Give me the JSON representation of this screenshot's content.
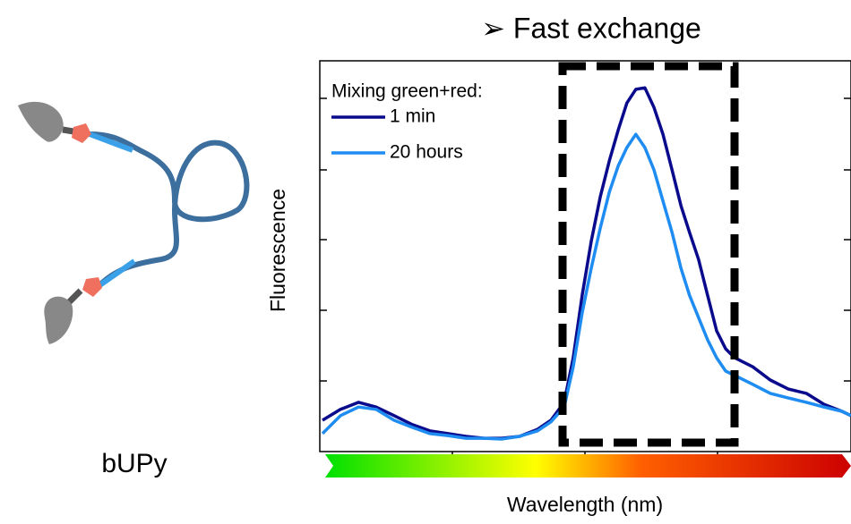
{
  "chart_data": {
    "type": "line",
    "title": "➢ Fast exchange",
    "ylabel": "Fluorescence",
    "xlabel": "Wavelength (nm)",
    "legend_title": "Mixing green+red:",
    "illustration_label": "bUPy",
    "xlim": [
      0,
      100
    ],
    "ylim": [
      0,
      100
    ],
    "x": [
      0.5,
      3.9,
      7.3,
      10.6,
      14.0,
      17.4,
      20.7,
      24.1,
      27.5,
      30.9,
      34.2,
      37.6,
      41.0,
      43.5,
      46.0,
      47.7,
      49.4,
      51.1,
      52.8,
      54.5,
      56.2,
      57.8,
      59.5,
      61.2,
      62.9,
      64.6,
      66.3,
      68.0,
      69.6,
      71.3,
      73.0,
      74.7,
      76.4,
      78.1,
      81.5,
      84.8,
      88.2,
      91.6,
      94.9,
      98.3,
      100
    ],
    "series": [
      {
        "name": "1 min",
        "color": "#0a0a8c",
        "values": [
          8.0,
          10.8,
          12.6,
          11.4,
          9.2,
          6.9,
          5.3,
          4.6,
          3.9,
          3.4,
          3.4,
          3.9,
          5.7,
          8.0,
          12.6,
          24.0,
          40.0,
          53.8,
          65.2,
          74.4,
          82.4,
          89.2,
          92.7,
          93.1,
          88.1,
          81.2,
          72.1,
          62.9,
          56.1,
          49.2,
          40.0,
          30.9,
          26.3,
          24.0,
          21.7,
          18.3,
          16.0,
          14.9,
          12.1,
          10.3,
          9.2
        ]
      },
      {
        "name": "20 hours",
        "color": "#1e8cf0",
        "values": [
          4.6,
          9.2,
          11.4,
          10.8,
          8.0,
          6.2,
          4.6,
          4.1,
          3.4,
          3.4,
          3.2,
          3.9,
          5.3,
          7.6,
          11.4,
          21.7,
          35.5,
          46.9,
          57.2,
          66.4,
          73.2,
          77.8,
          81.2,
          77.8,
          72.1,
          64.1,
          56.1,
          46.9,
          40.0,
          34.3,
          28.6,
          24.0,
          20.6,
          19.5,
          17.2,
          14.9,
          13.7,
          12.6,
          11.4,
          10.3,
          9.2
        ]
      }
    ]
  }
}
